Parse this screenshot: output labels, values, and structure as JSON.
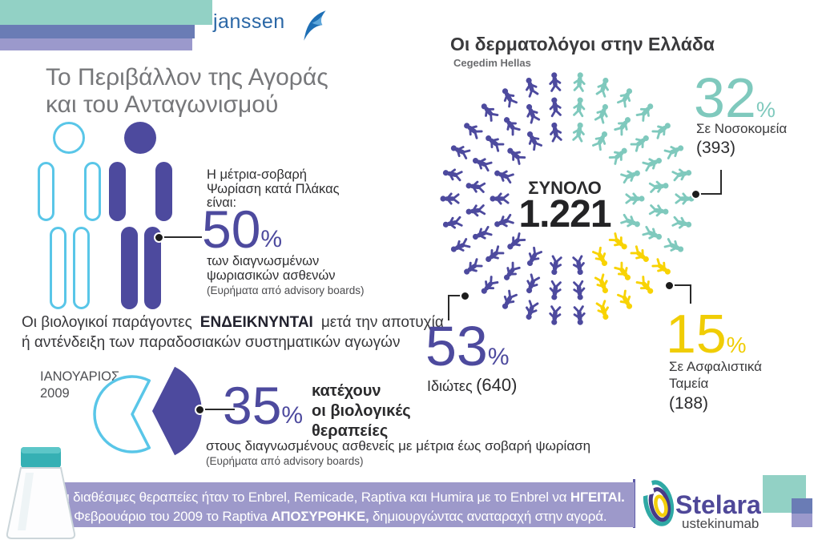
{
  "palette": {
    "purple": "#4d4a9e",
    "cyan": "#59c6e8",
    "teal": "#7fc9bd",
    "yellow": "#f8d303",
    "yellow_num": "#f0cd05",
    "teal_bar": "#92d1c5",
    "blue_bar": "#6a7cb5",
    "lilac_bar": "#9b99cc",
    "banner": "#9d99ca",
    "janssen_blue": "#2a67a6",
    "stelara_purple": "#4f4899"
  },
  "header": {
    "brand": "janssen",
    "title_line1": "Το Περιβάλλον της Αγοράς",
    "title_line2": "και του Ανταγωνισμού"
  },
  "stat50": {
    "intro_lines": [
      "Η μέτρια-σοβαρή",
      "Ψωρίαση κατά Πλάκας",
      "είναι:"
    ],
    "value": "50",
    "pct": "%",
    "caption_lines": [
      "των διαγνωσμένων",
      "ψωριασικών ασθενών"
    ],
    "source": "(Ευρήματα από advisory boards)"
  },
  "biologics": {
    "pre": "Οι βιολογικοί παράγοντες",
    "highlight": "ΕΝΔΕΙΚΝΥΝΤΑΙ",
    "post": "μετά την αποτυχία",
    "line2": "ή αντένδειξη των παραδοσιακών συστηματικών αγωγών"
  },
  "pie35": {
    "date_line1": "ΙΑΝΟΥΑΡΙΟΣ",
    "date_line2": "2009",
    "value": "35",
    "pct": "%",
    "label_lines": [
      "κατέχουν",
      "οι βιολογικές",
      "θεραπείες"
    ],
    "caption": "στους διαγνωσμένους ασθενείς με μέτρια έως σοβαρή ψωρίαση",
    "source": "(Ευρήματα από advisory boards)"
  },
  "derma": {
    "title": "Οι δερματολόγοι στην Ελλάδα",
    "source": "Cegedim Hellas",
    "center_label": "ΣΥΝΟΛΟ",
    "center_value": "1.221",
    "hospitals": {
      "value": "32",
      "pct": "%",
      "label": "Σε Νοσοκομεία",
      "count": "(393)"
    },
    "insurance": {
      "value": "15",
      "pct": "%",
      "label_line1": "Σε Ασφαλιστικά",
      "label_line2": "Ταμεία",
      "count": "(188)"
    },
    "private": {
      "value": "53",
      "pct": "%",
      "label": "Ιδιώτες",
      "count": "(640)"
    }
  },
  "footer": {
    "line1_pre": "Οι διαθέσιμες θεραπείες ήταν το Enbrel, Remicade, Raptiva και Humira με το Enbrel να ",
    "line1_bold": "ΗΓΕΙΤΑΙ.",
    "line2_pre": "Το Φεβρουάριο του 2009 το Raptiva ",
    "line2_bold": "ΑΠΟΣΥΡΘΗΚΕ,",
    "line2_post": " δημιουργώντας αναταραχή στην αγορά.",
    "stelara_name": "Stelara",
    "stelara_generic": "ustekinumab"
  },
  "chart_data": [
    {
      "id": "biologics-share",
      "type": "pie",
      "title": "ΙΑΝΟΥΑΡΙΟΣ 2009",
      "labels": [
        "κατέχουν οι βιολογικές θεραπείες",
        ""
      ],
      "values": [
        35,
        65
      ],
      "colors": [
        "#4d4a9e",
        "#ffffff"
      ],
      "note": "στους διαγνωσμένους ασθενείς με μέτρια έως σοβαρή ψωρίαση (Ευρήματα από advisory boards)"
    },
    {
      "id": "dermatologists",
      "type": "pie",
      "title": "Οι δερματολόγοι στην Ελλάδα",
      "source": "Cegedim Hellas",
      "total_label": "ΣΥΝΟΛΟ",
      "total": 1221,
      "segments": [
        {
          "label": "Σε Νοσοκομεία",
          "pct": 32,
          "count": 393,
          "color": "#7fc9bd"
        },
        {
          "label": "Σε Ασφαλιστικά Ταμεία",
          "pct": 15,
          "count": 188,
          "color": "#f8d303"
        },
        {
          "label": "Ιδιώτες",
          "pct": 53,
          "count": 640,
          "color": "#4d4a9e"
        }
      ]
    }
  ]
}
